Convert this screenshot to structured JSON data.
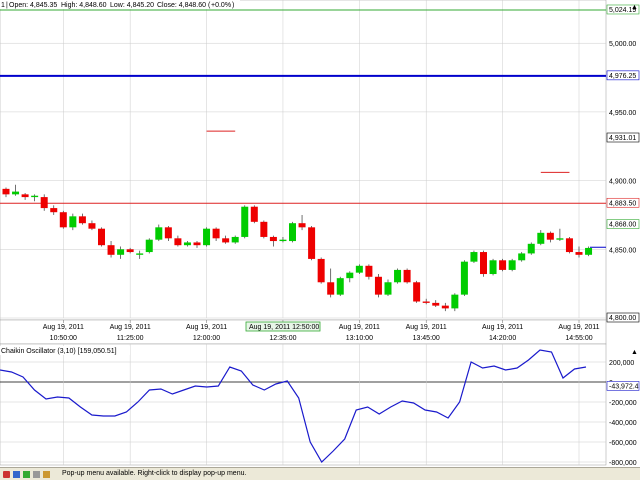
{
  "header": {
    "prefix": "1",
    "open": "Open: 4,845.35",
    "high": "High: 4,848.60",
    "low": "Low: 4,845.20",
    "close": "Close: 4,848.60",
    "change": "+0.0%"
  },
  "crosshair_time": "Aug 19, 2011 12:50:00",
  "status": {
    "text": "Pop-up menu available. Right-click to display pop-up menu."
  },
  "colors": {
    "up": "#00cc00",
    "down": "#ee0000",
    "level_blue": "#0000cc",
    "level_green": "#33aa33",
    "level_red": "#dd2222",
    "osc_line": "#1a1acc",
    "grid": "#cccccc"
  },
  "chart_data": [
    {
      "type": "candlestick",
      "price_axis": {
        "min": 4800,
        "max": 5030
      },
      "tick_labels": [
        "5,000.00",
        "4,950.00",
        "4,900.00",
        "4,850.00",
        "4,800.00"
      ],
      "tick_values": [
        5000,
        4950,
        4900,
        4850,
        4800
      ],
      "value_labels": [
        {
          "text": "5,024.19",
          "value": 5024.19,
          "color": "#33aa33"
        },
        {
          "text": "4,976.25",
          "value": 4976.25,
          "color": "#0000cc"
        },
        {
          "text": "4,931.01",
          "value": 4931.01,
          "color": "#000000"
        },
        {
          "text": "4,883.50",
          "value": 4883.5,
          "color": "#dd2222"
        },
        {
          "text": "4,868.00",
          "value": 4868,
          "color": "#33aa33"
        },
        {
          "text": "4,800.00",
          "value": 4800,
          "color": "#000000"
        }
      ],
      "levels": [
        {
          "value": 5024.19,
          "color": "#33aa33"
        },
        {
          "value": 4976.25,
          "color": "#0000cc"
        },
        {
          "value": 4883.5,
          "color": "#dd2222"
        },
        {
          "value": 4851.5,
          "color": "#0000cc"
        }
      ],
      "short_levels": [
        {
          "value": 4936,
          "from": 21,
          "to": 24
        },
        {
          "value": 4906,
          "from": 56,
          "to": 59
        }
      ],
      "time_labels": [
        {
          "date": "Aug 19, 2011",
          "time": "10:50:00",
          "index": 6
        },
        {
          "date": "Aug 19, 2011",
          "time": "11:25:00",
          "index": 13
        },
        {
          "date": "Aug 19, 2011",
          "time": "12:00:00",
          "index": 21
        },
        {
          "date": "Aug 19, 2011",
          "time": "12:35:00",
          "index": 29
        },
        {
          "date": "Aug 19, 2011",
          "time": "13:10:00",
          "index": 37
        },
        {
          "date": "Aug 19, 2011",
          "time": "13:45:00",
          "index": 44
        },
        {
          "date": "Aug 19, 2011",
          "time": "14:20:00",
          "index": 52
        },
        {
          "date": "Aug 19, 2011",
          "time": "14:55:00",
          "index": 60
        }
      ],
      "candles": [
        [
          4894,
          4895,
          4888,
          4890
        ],
        [
          4890,
          4897,
          4889,
          4892
        ],
        [
          4890,
          4891,
          4886,
          4888
        ],
        [
          4888,
          4890,
          4885,
          4889
        ],
        [
          4888,
          4890,
          4878,
          4880
        ],
        [
          4880,
          4882,
          4875,
          4877
        ],
        [
          4877,
          4878,
          4865,
          4866
        ],
        [
          4866,
          4876,
          4864,
          4874
        ],
        [
          4874,
          4876,
          4868,
          4869
        ],
        [
          4869,
          4871,
          4864,
          4865
        ],
        [
          4865,
          4866,
          4852,
          4853
        ],
        [
          4853,
          4856,
          4844,
          4846
        ],
        [
          4846,
          4852,
          4843,
          4850
        ],
        [
          4850,
          4851,
          4847,
          4848
        ],
        [
          4846,
          4849,
          4843,
          4847
        ],
        [
          4848,
          4858,
          4847,
          4857
        ],
        [
          4857,
          4868,
          4856,
          4866
        ],
        [
          4866,
          4867,
          4856,
          4858
        ],
        [
          4858,
          4860,
          4852,
          4853
        ],
        [
          4853,
          4856,
          4852,
          4855
        ],
        [
          4855,
          4856,
          4851,
          4853
        ],
        [
          4853,
          4866,
          4852,
          4865
        ],
        [
          4865,
          4866,
          4856,
          4858
        ],
        [
          4858,
          4860,
          4854,
          4855
        ],
        [
          4855,
          4860,
          4854,
          4859
        ],
        [
          4859,
          4882,
          4858,
          4881
        ],
        [
          4881,
          4882,
          4869,
          4870
        ],
        [
          4870,
          4871,
          4858,
          4859
        ],
        [
          4859,
          4860,
          4852,
          4856
        ],
        [
          4856,
          4859,
          4855,
          4857
        ],
        [
          4856,
          4870,
          4855,
          4869
        ],
        [
          4869,
          4875,
          4864,
          4866
        ],
        [
          4866,
          4867,
          4842,
          4843
        ],
        [
          4843,
          4844,
          4825,
          4826
        ],
        [
          4826,
          4836,
          4815,
          4817
        ],
        [
          4817,
          4830,
          4816,
          4829
        ],
        [
          4829,
          4834,
          4826,
          4833
        ],
        [
          4833,
          4839,
          4832,
          4838
        ],
        [
          4838,
          4839,
          4828,
          4830
        ],
        [
          4830,
          4832,
          4815,
          4817
        ],
        [
          4817,
          4828,
          4816,
          4826
        ],
        [
          4826,
          4836,
          4825,
          4835
        ],
        [
          4835,
          4836,
          4825,
          4826
        ],
        [
          4826,
          4827,
          4811,
          4812
        ],
        [
          4812,
          4814,
          4810,
          4811
        ],
        [
          4811,
          4813,
          4808,
          4809
        ],
        [
          4809,
          4811,
          4805,
          4807
        ],
        [
          4807,
          4818,
          4805,
          4817
        ],
        [
          4817,
          4842,
          4816,
          4841
        ],
        [
          4841,
          4849,
          4840,
          4848
        ],
        [
          4848,
          4849,
          4830,
          4832
        ],
        [
          4832,
          4843,
          4831,
          4842
        ],
        [
          4842,
          4843,
          4834,
          4835
        ],
        [
          4835,
          4843,
          4834,
          4842
        ],
        [
          4842,
          4848,
          4841,
          4847
        ],
        [
          4847,
          4855,
          4846,
          4854
        ],
        [
          4854,
          4864,
          4853,
          4862
        ],
        [
          4862,
          4863,
          4855,
          4857
        ],
        [
          4857,
          4865,
          4856,
          4858
        ],
        [
          4858,
          4859,
          4847,
          4848
        ],
        [
          4848,
          4852,
          4844,
          4846
        ],
        [
          4846,
          4852,
          4845,
          4851
        ]
      ]
    },
    {
      "type": "line",
      "title": "Chaikin Oscillator (3,10) [159,050.51]",
      "y_range": [
        -800000,
        300000
      ],
      "tick_labels": [
        "200,000",
        "0",
        "-200,000",
        "-400,000",
        "-600,000",
        "-800,000"
      ],
      "tick_values": [
        200000,
        0,
        -200000,
        -400000,
        -600000,
        -800000
      ],
      "value_label": {
        "text": "-43,972.4",
        "value": -43972.4
      },
      "series": [
        {
          "values": [
            120000,
            100000,
            50000,
            -80000,
            -170000,
            -150000,
            -160000,
            -250000,
            -330000,
            -340000,
            -340000,
            -300000,
            -200000,
            -80000,
            -70000,
            -120000,
            -80000,
            -40000,
            -50000,
            -40000,
            150000,
            110000,
            -30000,
            -80000,
            -20000,
            10000,
            -160000,
            -600000,
            -800000,
            -690000,
            -570000,
            -280000,
            -250000,
            -320000,
            -250000,
            -190000,
            -210000,
            -280000,
            -300000,
            -360000,
            -200000,
            200000,
            140000,
            160000,
            120000,
            140000,
            220000,
            320000,
            300000,
            40000,
            130000,
            150000
          ]
        }
      ]
    }
  ]
}
